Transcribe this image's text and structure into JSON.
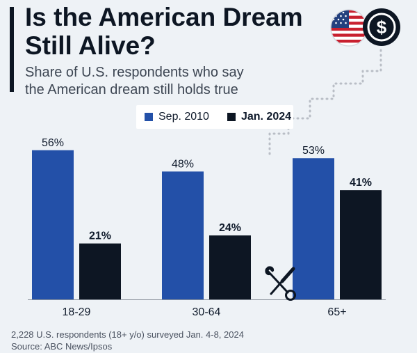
{
  "header": {
    "title_line1": "Is the American Dream",
    "title_line2": "Still Alive?",
    "subtitle_line1": "Share of U.S. respondents who say",
    "subtitle_line2": "the American dream still holds true"
  },
  "legend": {
    "series1": "Sep. 2010",
    "series2": "Jan. 2024"
  },
  "footer": {
    "note": "2,228 U.S. respondents (18+ y/o) surveyed Jan. 4-8, 2024",
    "source": "Source: ABC News/Ipsos"
  },
  "icons": {
    "flag": "us-flag-icon",
    "dollar": "dollar-coin-icon",
    "tools": "wrench-screwdriver-icon"
  },
  "colors": {
    "series1": "#2350a8",
    "series2": "#0d1623",
    "background": "#eef2f6"
  },
  "chart_data": {
    "type": "bar",
    "categories": [
      "18-29",
      "30-64",
      "65+"
    ],
    "series": [
      {
        "name": "Sep. 2010",
        "values": [
          56,
          48,
          53
        ],
        "labels": [
          "56%",
          "48%",
          "53%"
        ]
      },
      {
        "name": "Jan. 2024",
        "values": [
          21,
          24,
          41
        ],
        "labels": [
          "21%",
          "24%",
          "41%"
        ]
      }
    ],
    "title": "Is the American Dream Still Alive?",
    "subtitle": "Share of U.S. respondents who say the American dream still holds true",
    "xlabel": "",
    "ylabel": "",
    "ylim": [
      0,
      60
    ],
    "grid": false,
    "legend_position": "top-center"
  }
}
